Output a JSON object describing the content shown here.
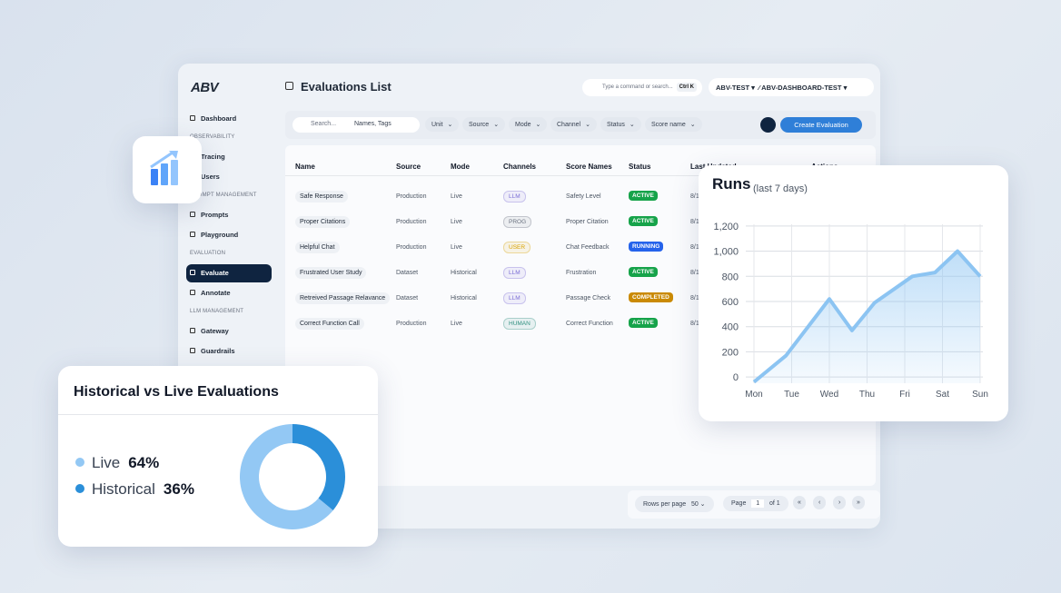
{
  "app": {
    "logo": "ABV",
    "page_title": "Evaluations List",
    "search_placeholder": "Type a command or search...",
    "shortcut": "Ctrl K",
    "org": "ABV-TEST",
    "project": "ABV-DASHBOARD-TEST"
  },
  "sidebar": [
    {
      "items": [
        {
          "label": "Dashboard"
        }
      ]
    },
    {
      "heading": "OBSERVABILITY",
      "items": [
        {
          "label": "Tracing"
        },
        {
          "label": "Users"
        }
      ]
    },
    {
      "heading": "PROMPT MANAGEMENT",
      "items": [
        {
          "label": "Prompts"
        },
        {
          "label": "Playground"
        }
      ]
    },
    {
      "heading": "EVALUATION",
      "items": [
        {
          "label": "Evaluate",
          "active": true
        },
        {
          "label": "Annotate"
        }
      ]
    },
    {
      "heading": "LLM MANAGEMENT",
      "items": [
        {
          "label": "Gateway"
        },
        {
          "label": "Guardrails"
        }
      ]
    }
  ],
  "filters": {
    "search": "Search...",
    "names_tags": "Names, Tags",
    "dropdowns": [
      "Unit",
      "Source",
      "Mode",
      "Channel",
      "Status",
      "Score name"
    ],
    "create_button": "Create Evaluation"
  },
  "table": {
    "columns": [
      "Name",
      "Source",
      "Mode",
      "Channels",
      "Score Names",
      "Status",
      "Last Updated",
      "Actions"
    ],
    "rows": [
      {
        "cells": [
          "Safe Response",
          "Production",
          "Live",
          "LLM",
          "Safety Level",
          "ACTIVE",
          "8/1"
        ],
        "channel_color": "#7c6fd6",
        "status_color": "#16a34a"
      },
      {
        "cells": [
          "Proper Citations",
          "Production",
          "Live",
          "PROG",
          "Proper Citation",
          "ACTIVE",
          "8/1"
        ],
        "channel_color": "#6b7280",
        "status_color": "#16a34a"
      },
      {
        "cells": [
          "Helpful Chat",
          "Production",
          "Live",
          "USER",
          "Chat Feedback",
          "RUNNING",
          "8/1"
        ],
        "channel_color": "#d9a300",
        "status_color": "#2563eb"
      },
      {
        "cells": [
          "Frustrated User Study",
          "Dataset",
          "Historical",
          "LLM",
          "Frustration",
          "ACTIVE",
          "8/1"
        ],
        "channel_color": "#7c6fd6",
        "status_color": "#16a34a"
      },
      {
        "cells": [
          "Retreived Passage Relavance",
          "Dataset",
          "Historical",
          "LLM",
          "Passage Check",
          "COMPLETED",
          "8/1"
        ],
        "channel_color": "#7c6fd6",
        "status_color": "#ca8a04"
      },
      {
        "cells": [
          "Correct Function Call",
          "Production",
          "Live",
          "HUMAN",
          "Correct Function",
          "ACTIVE",
          "8/1"
        ],
        "channel_color": "#2f8f7f",
        "status_color": "#16a34a"
      }
    ]
  },
  "pagination": {
    "rows_label": "Rows per page",
    "rows_value": "50",
    "page_label": "Page",
    "page_value": "1",
    "page_total": "of 1"
  },
  "chart_data": [
    {
      "type": "line",
      "title": "Runs",
      "subtitle": "(last 7 days)",
      "color": "#8cc4f2",
      "area": true,
      "grid": true,
      "x": [
        0,
        0.85,
        2,
        2.6,
        3.2,
        4.2,
        4.8,
        5.4,
        6
      ],
      "values": [
        -40,
        170,
        620,
        370,
        590,
        800,
        830,
        1000,
        800
      ],
      "xlim": [
        0,
        6
      ],
      "xticks": [
        {
          "value": 0,
          "label": "Mon"
        },
        {
          "value": 1,
          "label": "Tue"
        },
        {
          "value": 2,
          "label": "Wed"
        },
        {
          "value": 3,
          "label": "Thu"
        },
        {
          "value": 4,
          "label": "Fri"
        },
        {
          "value": 5,
          "label": "Sat"
        },
        {
          "value": 6,
          "label": "Sun"
        }
      ],
      "ylim": [
        -50,
        1250
      ],
      "yticks": [
        {
          "value": 1200,
          "label": "1,200"
        },
        {
          "value": 1000,
          "label": "1,000"
        },
        800,
        600,
        400,
        200,
        0
      ]
    },
    {
      "type": "donut",
      "title": "Historical vs Live Evaluations",
      "series": [
        {
          "name": "Live",
          "value": 64,
          "value_label": "64%",
          "color": "#93c8f4"
        },
        {
          "name": "Historical",
          "value": 36,
          "value_label": "36%",
          "color": "#2b8fd9"
        }
      ]
    }
  ]
}
